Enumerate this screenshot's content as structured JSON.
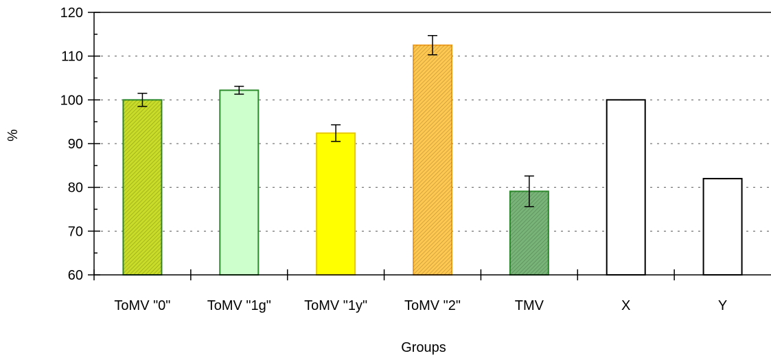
{
  "chart_data": {
    "type": "bar",
    "title": "",
    "xlabel": "Groups",
    "ylabel": "%",
    "ylim": [
      60,
      120
    ],
    "yticks": [
      60,
      70,
      80,
      90,
      100,
      110,
      120
    ],
    "grid": "horizontal dotted",
    "categories": [
      "ToMV \"0\"",
      "ToMV \"1g\"",
      "ToMV \"1y\"",
      "ToMV \"2\"",
      "TMV",
      "X",
      "Y"
    ],
    "values": [
      100,
      102.2,
      92.4,
      112.5,
      79.1,
      100,
      82
    ],
    "errors": [
      1.5,
      0.9,
      1.9,
      2.2,
      3.5,
      0,
      0
    ],
    "fill_colors": [
      "#c8dc28",
      "#ccffcc",
      "#ffff00",
      "#ffc850",
      "#78b478",
      "#ffffff",
      "#ffffff"
    ],
    "stroke_colors": [
      "#2e8b2e",
      "#2e8b2e",
      "#e8c800",
      "#f0a020",
      "#2e8b2e",
      "#000000",
      "#000000"
    ],
    "hatched": [
      true,
      false,
      false,
      true,
      true,
      false,
      false
    ]
  }
}
